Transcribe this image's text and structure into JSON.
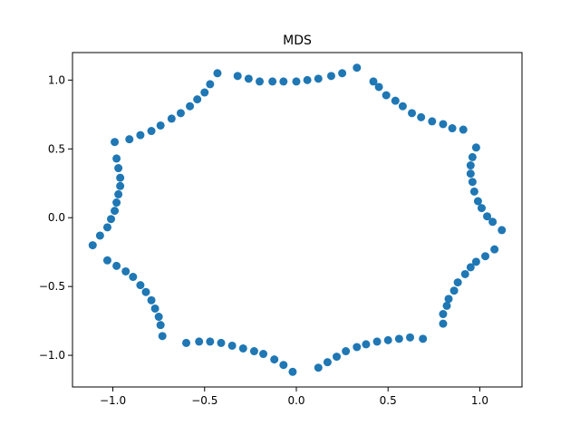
{
  "chart_data": {
    "type": "scatter",
    "title": "MDS",
    "color": "#1f77b4",
    "x": [
      -0.43,
      -0.47,
      -0.5,
      -0.54,
      -0.58,
      -0.63,
      -0.68,
      -0.74,
      -0.79,
      -0.85,
      -0.91,
      -0.99,
      -0.98,
      -0.97,
      -0.96,
      -0.96,
      -0.97,
      -0.98,
      -0.99,
      -1.01,
      -1.03,
      -1.07,
      -1.11,
      -1.03,
      -0.98,
      -0.93,
      -0.89,
      -0.85,
      -0.82,
      -0.79,
      -0.77,
      -0.75,
      -0.74,
      -0.73,
      -0.6,
      -0.53,
      -0.47,
      -0.41,
      -0.35,
      -0.29,
      -0.23,
      -0.18,
      -0.12,
      -0.07,
      -0.02,
      0.12,
      0.17,
      0.22,
      0.27,
      0.33,
      0.38,
      0.44,
      0.5,
      0.56,
      0.62,
      0.69,
      0.8,
      0.8,
      0.82,
      0.83,
      0.86,
      0.88,
      0.92,
      0.95,
      0.98,
      1.03,
      1.08,
      1.12,
      1.07,
      1.04,
      1.01,
      0.99,
      0.97,
      0.96,
      0.95,
      0.95,
      0.96,
      0.98,
      0.91,
      0.85,
      0.8,
      0.74,
      0.68,
      0.63,
      0.58,
      0.54,
      0.49,
      0.45,
      0.42,
      0.33,
      0.25,
      0.19,
      0.12,
      0.06,
      0.0,
      -0.07,
      -0.13,
      -0.2,
      -0.26,
      -0.32
    ],
    "y": [
      1.05,
      0.97,
      0.91,
      0.86,
      0.81,
      0.76,
      0.72,
      0.67,
      0.63,
      0.6,
      0.57,
      0.55,
      0.43,
      0.36,
      0.29,
      0.23,
      0.17,
      0.11,
      0.05,
      -0.01,
      -0.07,
      -0.13,
      -0.2,
      -0.31,
      -0.35,
      -0.39,
      -0.43,
      -0.49,
      -0.54,
      -0.6,
      -0.66,
      -0.72,
      -0.78,
      -0.86,
      -0.91,
      -0.9,
      -0.9,
      -0.91,
      -0.93,
      -0.95,
      -0.97,
      -0.99,
      -1.03,
      -1.07,
      -1.12,
      -1.09,
      -1.05,
      -1.01,
      -0.97,
      -0.94,
      -0.92,
      -0.9,
      -0.89,
      -0.88,
      -0.87,
      -0.88,
      -0.77,
      -0.7,
      -0.64,
      -0.59,
      -0.53,
      -0.47,
      -0.41,
      -0.36,
      -0.32,
      -0.28,
      -0.23,
      -0.09,
      -0.03,
      0.01,
      0.07,
      0.12,
      0.19,
      0.26,
      0.32,
      0.38,
      0.44,
      0.51,
      0.64,
      0.65,
      0.68,
      0.7,
      0.73,
      0.76,
      0.81,
      0.85,
      0.89,
      0.95,
      0.99,
      1.09,
      1.05,
      1.03,
      1.01,
      1.0,
      0.99,
      0.99,
      0.99,
      0.99,
      1.01,
      1.03
    ],
    "xlim": [
      -1.22,
      1.23
    ],
    "ylim": [
      -1.23,
      1.2
    ],
    "xticks": [
      {
        "value": -1.0,
        "label": "−1.0"
      },
      {
        "value": -0.5,
        "label": "−0.5"
      },
      {
        "value": 0,
        "label": "0.0"
      },
      {
        "value": 0.5,
        "label": "0.5"
      },
      {
        "value": 1.0,
        "label": "1.0"
      }
    ],
    "yticks": [
      {
        "value": -1.0,
        "label": "−1.0"
      },
      {
        "value": -0.5,
        "label": "−0.5"
      },
      {
        "value": 0,
        "label": "0.0"
      },
      {
        "value": 0.5,
        "label": "0.5"
      },
      {
        "value": 1.0,
        "label": "1.0"
      }
    ],
    "grid": false
  }
}
